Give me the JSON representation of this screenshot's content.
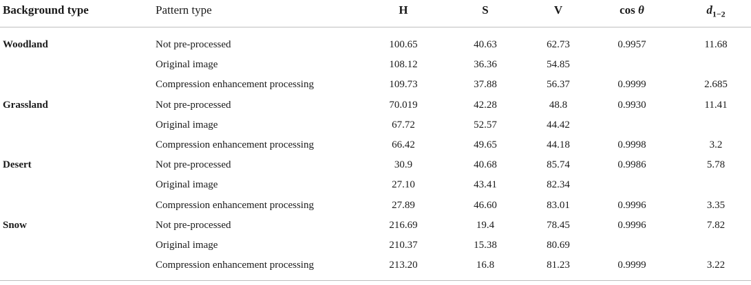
{
  "header": {
    "background_type": "Background type",
    "pattern_type": "Pattern type",
    "h": "H",
    "s": "S",
    "v": "V",
    "cos_word": "cos",
    "cos_theta": "θ",
    "d_symbol": "d",
    "d_sub": "1−2"
  },
  "groups": [
    {
      "background": "Woodland",
      "rows": [
        {
          "pattern": "Not pre-processed",
          "h": "100.65",
          "s": "40.63",
          "v": "62.73",
          "cos": "0.9957",
          "d": "11.68"
        },
        {
          "pattern": "Original image",
          "h": "108.12",
          "s": "36.36",
          "v": "54.85",
          "cos": "",
          "d": ""
        },
        {
          "pattern": "Compression enhancement processing",
          "h": "109.73",
          "s": "37.88",
          "v": "56.37",
          "cos": "0.9999",
          "d": "2.685"
        }
      ]
    },
    {
      "background": "Grassland",
      "rows": [
        {
          "pattern": "Not pre-processed",
          "h": "70.019",
          "s": "42.28",
          "v": "48.8",
          "cos": "0.9930",
          "d": "11.41"
        },
        {
          "pattern": "Original image",
          "h": "67.72",
          "s": "52.57",
          "v": "44.42",
          "cos": "",
          "d": ""
        },
        {
          "pattern": "Compression enhancement processing",
          "h": "66.42",
          "s": "49.65",
          "v": "44.18",
          "cos": "0.9998",
          "d": "3.2"
        }
      ]
    },
    {
      "background": "Desert",
      "rows": [
        {
          "pattern": "Not pre-processed",
          "h": "30.9",
          "s": "40.68",
          "v": "85.74",
          "cos": "0.9986",
          "d": "5.78"
        },
        {
          "pattern": "Original image",
          "h": "27.10",
          "s": "43.41",
          "v": "82.34",
          "cos": "",
          "d": ""
        },
        {
          "pattern": "Compression enhancement processing",
          "h": "27.89",
          "s": "46.60",
          "v": "83.01",
          "cos": "0.9996",
          "d": "3.35"
        }
      ]
    },
    {
      "background": "Snow",
      "rows": [
        {
          "pattern": "Not pre-processed",
          "h": "216.69",
          "s": "19.4",
          "v": "78.45",
          "cos": "0.9996",
          "d": "7.82"
        },
        {
          "pattern": "Original image",
          "h": "210.37",
          "s": "15.38",
          "v": "80.69",
          "cos": "",
          "d": ""
        },
        {
          "pattern": "Compression enhancement processing",
          "h": "213.20",
          "s": "16.8",
          "v": "81.23",
          "cos": "0.9999",
          "d": "3.22"
        }
      ]
    }
  ]
}
